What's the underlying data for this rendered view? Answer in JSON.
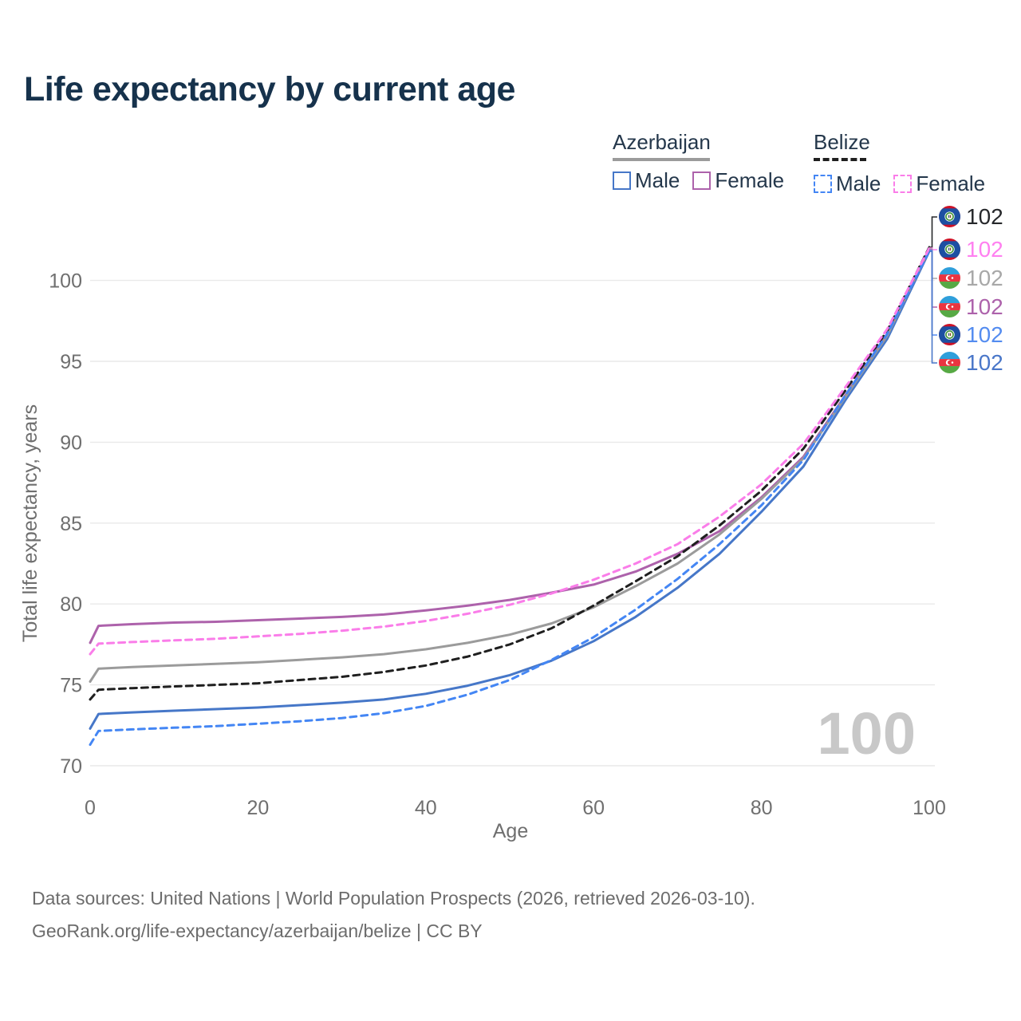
{
  "title": "Life expectancy by current age",
  "legend": {
    "groups": [
      {
        "label": "Azerbaijan",
        "line_style": "solid",
        "underline_color": "#9b9b9b",
        "items": [
          {
            "label": "Male",
            "color": "#4677c8",
            "style": "solid"
          },
          {
            "label": "Female",
            "color": "#ad62ab",
            "style": "solid"
          }
        ]
      },
      {
        "label": "Belize",
        "line_style": "dashed",
        "underline_color": "#1f1f1f",
        "items": [
          {
            "label": "Male",
            "color": "#4486f4",
            "style": "dashed"
          },
          {
            "label": "Female",
            "color": "#fa7de9",
            "style": "dashed"
          }
        ]
      }
    ]
  },
  "chart_data": {
    "type": "line",
    "title": "Life expectancy by current age",
    "xlabel": "Age",
    "ylabel": "Total life expectancy, years",
    "xlim": [
      0,
      100
    ],
    "ylim": [
      70,
      102
    ],
    "xticks": [
      0,
      20,
      40,
      60,
      80,
      100
    ],
    "yticks": [
      70,
      75,
      80,
      85,
      90,
      95,
      100
    ],
    "grid": "horizontal",
    "legend_position": "top-right",
    "x": [
      0,
      1,
      5,
      10,
      15,
      20,
      25,
      30,
      35,
      40,
      45,
      50,
      55,
      60,
      65,
      70,
      75,
      80,
      85,
      90,
      95,
      100
    ],
    "series": [
      {
        "name": "Azerbaijan Male",
        "country": "Azerbaijan",
        "sex": "Male",
        "color": "#4677c8",
        "dash": "solid",
        "values": [
          72.3,
          73.2,
          73.3,
          73.4,
          73.5,
          73.6,
          73.75,
          73.9,
          74.1,
          74.45,
          74.95,
          75.6,
          76.5,
          77.7,
          79.2,
          81.0,
          83.1,
          85.7,
          88.5,
          92.6,
          96.4,
          101.8
        ]
      },
      {
        "name": "Azerbaijan Female",
        "country": "Azerbaijan",
        "sex": "Female",
        "color": "#ad62ab",
        "dash": "solid",
        "values": [
          77.6,
          78.65,
          78.75,
          78.85,
          78.9,
          79.0,
          79.1,
          79.2,
          79.35,
          79.6,
          79.9,
          80.25,
          80.7,
          81.2,
          82.0,
          83.1,
          84.5,
          86.6,
          89.1,
          92.9,
          96.7,
          101.9
        ]
      },
      {
        "name": "Azerbaijan",
        "country": "Azerbaijan",
        "sex": "All",
        "color": "#9b9b9b",
        "dash": "solid",
        "values": [
          75.2,
          76.0,
          76.1,
          76.2,
          76.3,
          76.4,
          76.55,
          76.7,
          76.9,
          77.2,
          77.6,
          78.1,
          78.8,
          79.8,
          81.1,
          82.5,
          84.3,
          86.5,
          89.0,
          92.8,
          96.6,
          101.95
        ]
      },
      {
        "name": "Belize",
        "country": "Belize",
        "sex": "All",
        "color": "#1f1f1f",
        "dash": "dashed",
        "values": [
          74.1,
          74.7,
          74.8,
          74.9,
          75.0,
          75.1,
          75.3,
          75.5,
          75.8,
          76.2,
          76.75,
          77.5,
          78.5,
          79.9,
          81.4,
          82.95,
          84.85,
          87.0,
          89.6,
          93.2,
          96.9,
          102.05
        ]
      },
      {
        "name": "Belize Male",
        "country": "Belize",
        "sex": "Male",
        "color": "#4486f4",
        "dash": "dashed",
        "values": [
          71.3,
          72.15,
          72.25,
          72.35,
          72.45,
          72.6,
          72.75,
          72.95,
          73.25,
          73.7,
          74.4,
          75.3,
          76.55,
          77.95,
          79.65,
          81.55,
          83.7,
          86.1,
          88.9,
          92.9,
          96.7,
          101.85
        ]
      },
      {
        "name": "Belize Female",
        "country": "Belize",
        "sex": "Female",
        "color": "#fa7de9",
        "dash": "dashed",
        "values": [
          76.9,
          77.55,
          77.65,
          77.75,
          77.85,
          78.0,
          78.15,
          78.35,
          78.6,
          78.95,
          79.4,
          79.95,
          80.65,
          81.5,
          82.5,
          83.7,
          85.4,
          87.4,
          89.9,
          93.4,
          97.0,
          102.0
        ]
      }
    ]
  },
  "end_labels": [
    {
      "flag": "belize",
      "series": "Belize",
      "value": "102",
      "color": "#26282b"
    },
    {
      "flag": "belize",
      "series": "Belize Female",
      "value": "102",
      "color": "#ff80f0"
    },
    {
      "flag": "azerbaijan",
      "series": "Azerbaijan",
      "value": "102",
      "color": "#a8a8a8"
    },
    {
      "flag": "azerbaijan",
      "series": "Azerbaijan Female",
      "value": "102",
      "color": "#ad62ab"
    },
    {
      "flag": "belize",
      "series": "Belize Male",
      "value": "102",
      "color": "#548cf0"
    },
    {
      "flag": "azerbaijan",
      "series": "Azerbaijan Male",
      "value": "102",
      "color": "#4a77c9"
    }
  ],
  "watermark": "100",
  "footer": {
    "line1": "Data sources: United Nations | World Population Prospects (2026, retrieved 2026-03-10).",
    "line2": "GeoRank.org/life-expectancy/azerbaijan/belize | CC BY"
  },
  "colors": {
    "title_text": "#16324c",
    "legend_text": "#24374b",
    "axis_text": "#6f6f6f",
    "grid": "#e9e9e9",
    "watermark": "#c8c8c8",
    "footer_text": "#6c6c6c"
  }
}
